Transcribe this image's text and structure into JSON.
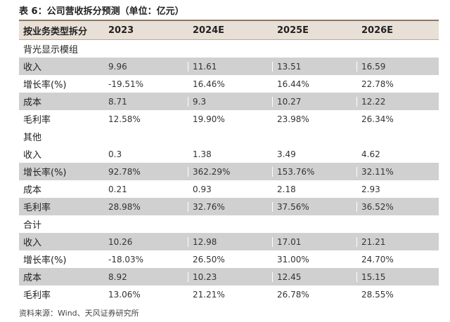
{
  "title": "表 6：公司营收拆分预测（单位：亿元）",
  "header": [
    "按业务类型拆分",
    "2023",
    "2024E",
    "2025E",
    "2026E"
  ],
  "sections": [
    {
      "name": "背光显示模组",
      "rows": [
        {
          "label": "收入",
          "values": [
            "9.96",
            "11.61",
            "13.51",
            "16.59"
          ],
          "shaded": true
        },
        {
          "label": "增长率(%)",
          "values": [
            "-19.51%",
            "16.46%",
            "16.44%",
            "22.78%"
          ],
          "shaded": false
        },
        {
          "label": "成本",
          "values": [
            "8.71",
            "9.3",
            "10.27",
            "12.22"
          ],
          "shaded": true
        },
        {
          "label": "毛利率",
          "values": [
            "12.58%",
            "19.90%",
            "23.98%",
            "26.34%"
          ],
          "shaded": false
        }
      ]
    },
    {
      "name": "其他",
      "rows": [
        {
          "label": "收入",
          "values": [
            "0.3",
            "1.38",
            "3.49",
            "4.62"
          ],
          "shaded": false
        },
        {
          "label": "增长率(%)",
          "values": [
            "92.78%",
            "362.29%",
            "153.76%",
            "32.11%"
          ],
          "shaded": true
        },
        {
          "label": "成本",
          "values": [
            "0.21",
            "0.93",
            "2.18",
            "2.93"
          ],
          "shaded": false
        },
        {
          "label": "毛利率",
          "values": [
            "28.98%",
            "32.76%",
            "37.56%",
            "36.52%"
          ],
          "shaded": true
        }
      ]
    },
    {
      "name": "合计",
      "rows": [
        {
          "label": "收入",
          "values": [
            "10.26",
            "12.98",
            "17.01",
            "21.21"
          ],
          "shaded": true
        },
        {
          "label": "增长率(%)",
          "values": [
            "-18.03%",
            "26.50%",
            "31.00%",
            "24.70%"
          ],
          "shaded": false
        },
        {
          "label": "成本",
          "values": [
            "8.92",
            "10.23",
            "12.45",
            "15.15"
          ],
          "shaded": true
        },
        {
          "label": "毛利率",
          "values": [
            "13.06%",
            "21.21%",
            "26.78%",
            "28.55%"
          ],
          "shaded": false
        }
      ]
    }
  ],
  "source": "资料来源：Wind、天风证券研究所"
}
